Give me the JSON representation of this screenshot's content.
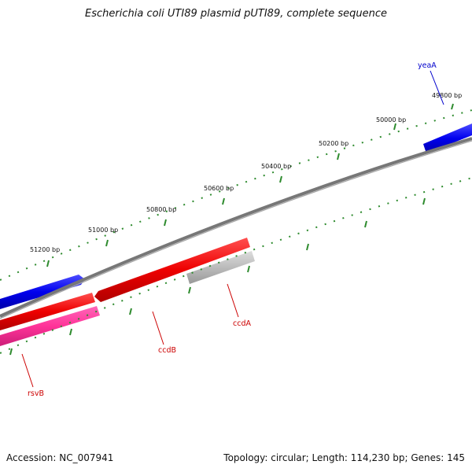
{
  "title": "Escherichia coli UTI89 plasmid pUTI89, complete sequence",
  "footer": {
    "accession": "Accession: NC_007941",
    "summary": "Topology: circular; Length: 114,230 bp; Genes: 145"
  },
  "ticks": [
    "49800 bp",
    "50000 bp",
    "50200 bp",
    "50400 bp",
    "50600 bp",
    "50800 bp",
    "51000 bp",
    "51200 bp"
  ],
  "genes": [
    {
      "name": "yeaA",
      "color": "#0000cc"
    },
    {
      "name": "ccdA",
      "color": "#cc0000"
    },
    {
      "name": "ccdB",
      "color": "#cc0000"
    },
    {
      "name": "rsvB",
      "color": "#cc0000"
    }
  ],
  "colors": {
    "backbone": "#808080",
    "forward_gene": "#0000ee",
    "reverse_gene": "#ee0000",
    "reverse_gene_alt": "#ff3399",
    "pseudo_gene": "#bbbbbb",
    "tick": "#2e8b2e"
  }
}
